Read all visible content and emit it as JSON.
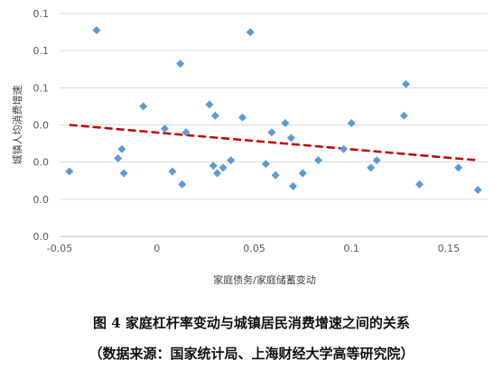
{
  "chart_data": {
    "type": "scatter",
    "xlabel": "家庭债务/家庭储蓄变动",
    "ylabel": "城镇人均消费增速",
    "x_ticks": [
      "-0.05",
      "0",
      "0.05",
      "0.1",
      "0.15"
    ],
    "y_ticks": [
      "0.0",
      "0.0",
      "0.0",
      "0.0",
      "0.1",
      "0.1",
      "0.1"
    ],
    "xlim": [
      -0.05,
      0.17
    ],
    "ylim": [
      0.0,
      0.12
    ],
    "grid": "horizontal",
    "series": [
      {
        "marker": "diamond",
        "color": "#5B9BD5",
        "points": [
          [
            -0.045,
            0.035
          ],
          [
            -0.031,
            0.111
          ],
          [
            -0.02,
            0.042
          ],
          [
            -0.018,
            0.047
          ],
          [
            -0.017,
            0.034
          ],
          [
            -0.007,
            0.07
          ],
          [
            0.004,
            0.058
          ],
          [
            0.008,
            0.035
          ],
          [
            0.012,
            0.093
          ],
          [
            0.013,
            0.028
          ],
          [
            0.015,
            0.056
          ],
          [
            0.027,
            0.071
          ],
          [
            0.029,
            0.038
          ],
          [
            0.03,
            0.065
          ],
          [
            0.031,
            0.034
          ],
          [
            0.034,
            0.037
          ],
          [
            0.038,
            0.041
          ],
          [
            0.044,
            0.064
          ],
          [
            0.048,
            0.11
          ],
          [
            0.056,
            0.039
          ],
          [
            0.059,
            0.056
          ],
          [
            0.061,
            0.033
          ],
          [
            0.066,
            0.061
          ],
          [
            0.069,
            0.053
          ],
          [
            0.07,
            0.027
          ],
          [
            0.075,
            0.034
          ],
          [
            0.083,
            0.041
          ],
          [
            0.096,
            0.047
          ],
          [
            0.1,
            0.061
          ],
          [
            0.11,
            0.037
          ],
          [
            0.113,
            0.041
          ],
          [
            0.127,
            0.065
          ],
          [
            0.128,
            0.082
          ],
          [
            0.135,
            0.028
          ],
          [
            0.155,
            0.037
          ],
          [
            0.165,
            0.025
          ]
        ]
      }
    ],
    "trendline": {
      "style": "dashed",
      "color": "#C00000",
      "points": [
        [
          -0.045,
          0.06
        ],
        [
          0.165,
          0.041
        ]
      ]
    }
  },
  "caption": {
    "title": "图 4  家庭杠杆率变动与城镇居民消费增速之间的关系",
    "source": "（数据来源：国家统计局、上海财经大学高等研究院）"
  }
}
